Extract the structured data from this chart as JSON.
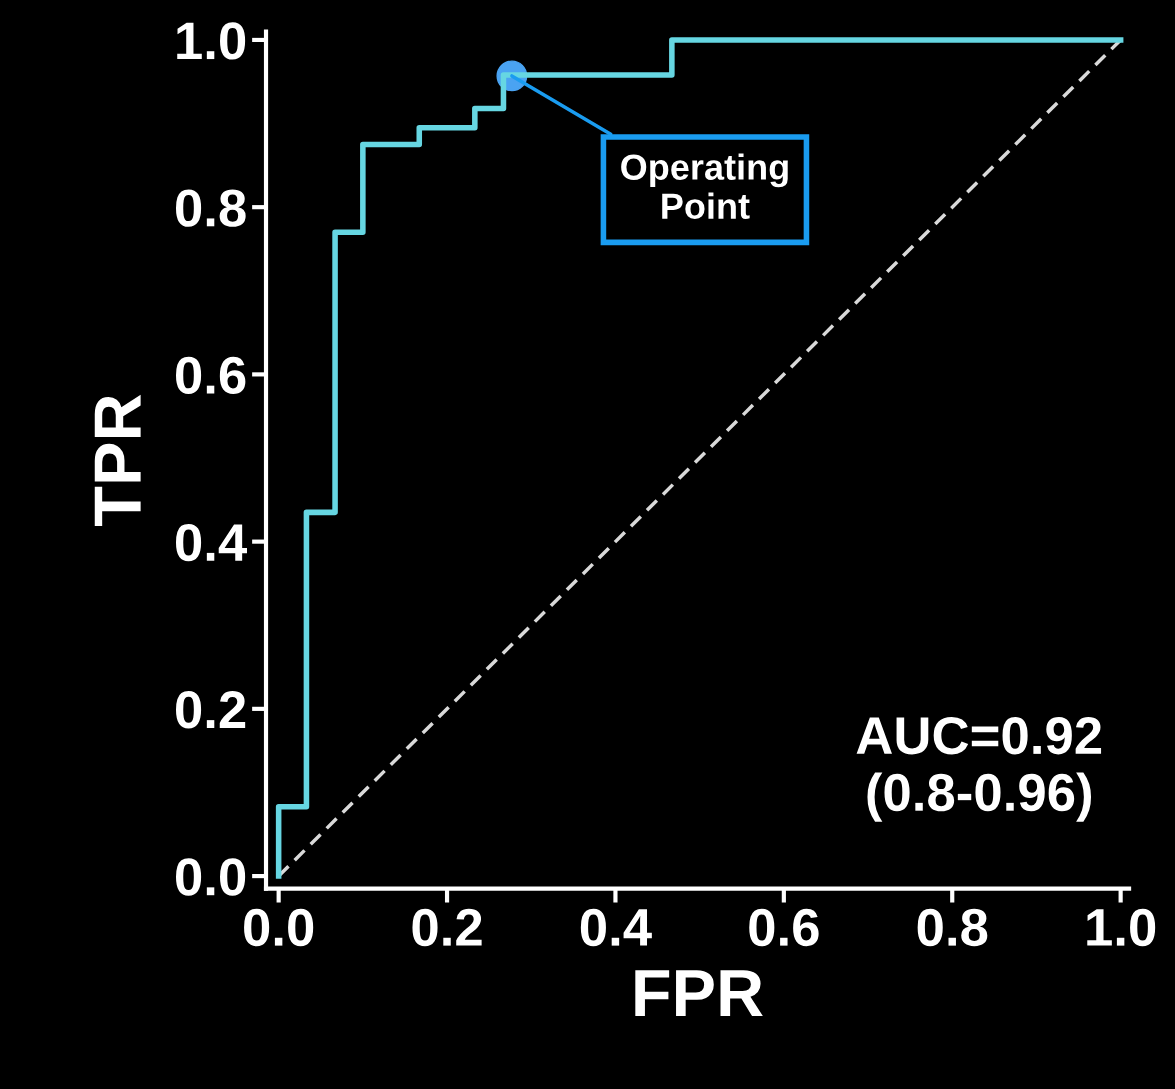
{
  "chart_data": {
    "type": "step",
    "xlabel": "FPR",
    "ylabel": "TPR",
    "series": [
      {
        "color": "#66d6e2",
        "x": [
          0,
          0,
          0.033,
          0.067,
          0.1,
          0.167,
          0.233,
          0.267,
          0.467,
          1.0
        ],
        "values": [
          0,
          0.083,
          0.435,
          0.77,
          0.875,
          0.895,
          0.918,
          0.958,
          1.0,
          1.0
        ]
      },
      {
        "type": "line",
        "color": "#d9d9d9",
        "line_style": "dashed",
        "x": [
          0,
          1
        ],
        "values": [
          0,
          1
        ]
      },
      {
        "type": "scatter",
        "color": "#4aa3f2",
        "marker": "circle",
        "x": [
          0.277
        ],
        "values": [
          0.957
        ]
      }
    ],
    "annotations": [
      {
        "text": "Operating\nPoint",
        "x": 0.277,
        "y": 0.957
      },
      "AUC=0.92\n(0.8-0.96)"
    ],
    "xlim": [
      -0.015,
      1.01
    ],
    "ylim": [
      -0.015,
      1.01
    ],
    "xticks": [
      {
        "value": 0,
        "label": "0.0"
      },
      {
        "value": 0.2,
        "label": "0.2"
      },
      {
        "value": 0.4,
        "label": "0.4"
      },
      {
        "value": 0.6,
        "label": "0.6"
      },
      {
        "value": 0.8,
        "label": "0.8"
      },
      {
        "value": 1,
        "label": "1.0"
      }
    ],
    "yticks": [
      {
        "value": 0,
        "label": "0.0"
      },
      {
        "value": 0.2,
        "label": "0.2"
      },
      {
        "value": 0.4,
        "label": "0.4"
      },
      {
        "value": 0.6,
        "label": "0.6"
      },
      {
        "value": 0.8,
        "label": "0.8"
      },
      {
        "value": 1,
        "label": "1.0"
      }
    ],
    "grid": false,
    "legend": false
  }
}
